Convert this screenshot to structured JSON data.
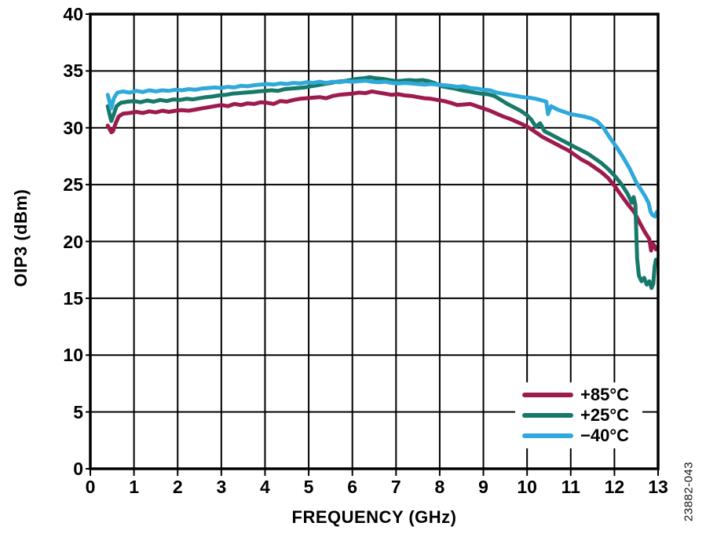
{
  "figure": {
    "background": "#ffffff",
    "watermark": "23882-043"
  },
  "axes": {
    "x": {
      "label": "FREQUENCY (GHz)",
      "min": 0,
      "max": 13,
      "ticks": [
        0,
        1,
        2,
        3,
        4,
        5,
        6,
        7,
        8,
        9,
        10,
        11,
        12,
        13
      ]
    },
    "y": {
      "label": "OIP3 (dBm)",
      "min": 0,
      "max": 40,
      "ticks": [
        0,
        5,
        10,
        15,
        20,
        25,
        30,
        35,
        40
      ]
    },
    "grid_color": "#000000",
    "frame_color": "#000000"
  },
  "legend": {
    "position": "bottom-right",
    "items": [
      {
        "label": "+85°C",
        "color": "#9e1b4e"
      },
      {
        "label": "+25°C",
        "color": "#17796a"
      },
      {
        "label": "−40°C",
        "color": "#2fa9dc"
      }
    ]
  },
  "chart_data": {
    "type": "line",
    "xlabel": "FREQUENCY (GHz)",
    "ylabel": "OIP3 (dBm)",
    "xlim": [
      0,
      13
    ],
    "ylim": [
      0,
      40
    ],
    "grid": true,
    "legend_position": "bottom-right",
    "series": [
      {
        "name": "+85°C",
        "color": "#9e1b4e",
        "points": [
          [
            0.4,
            30.2
          ],
          [
            0.44,
            29.9
          ],
          [
            0.48,
            29.6
          ],
          [
            0.52,
            29.7
          ],
          [
            0.58,
            30.4
          ],
          [
            0.65,
            31.0
          ],
          [
            0.75,
            31.25
          ],
          [
            0.9,
            31.3
          ],
          [
            1.05,
            31.4
          ],
          [
            1.2,
            31.3
          ],
          [
            1.35,
            31.45
          ],
          [
            1.5,
            31.35
          ],
          [
            1.65,
            31.5
          ],
          [
            1.8,
            31.4
          ],
          [
            1.95,
            31.5
          ],
          [
            2.1,
            31.55
          ],
          [
            2.25,
            31.5
          ],
          [
            2.4,
            31.6
          ],
          [
            2.55,
            31.7
          ],
          [
            2.7,
            31.8
          ],
          [
            2.85,
            31.9
          ],
          [
            3.0,
            32.0
          ],
          [
            3.15,
            31.9
          ],
          [
            3.3,
            32.1
          ],
          [
            3.45,
            32.0
          ],
          [
            3.6,
            32.15
          ],
          [
            3.75,
            32.1
          ],
          [
            3.9,
            32.25
          ],
          [
            4.05,
            32.2
          ],
          [
            4.2,
            32.1
          ],
          [
            4.35,
            32.35
          ],
          [
            4.5,
            32.3
          ],
          [
            4.65,
            32.45
          ],
          [
            4.8,
            32.55
          ],
          [
            4.95,
            32.6
          ],
          [
            5.1,
            32.65
          ],
          [
            5.25,
            32.7
          ],
          [
            5.4,
            32.6
          ],
          [
            5.55,
            32.8
          ],
          [
            5.7,
            32.9
          ],
          [
            5.85,
            32.95
          ],
          [
            6.0,
            33.0
          ],
          [
            6.15,
            33.1
          ],
          [
            6.3,
            33.05
          ],
          [
            6.45,
            33.2
          ],
          [
            6.6,
            33.1
          ],
          [
            6.75,
            33.0
          ],
          [
            6.9,
            32.9
          ],
          [
            7.05,
            32.95
          ],
          [
            7.2,
            32.85
          ],
          [
            7.35,
            32.8
          ],
          [
            7.5,
            32.7
          ],
          [
            7.65,
            32.6
          ],
          [
            7.8,
            32.55
          ],
          [
            7.95,
            32.45
          ],
          [
            8.1,
            32.35
          ],
          [
            8.25,
            32.2
          ],
          [
            8.4,
            32.0
          ],
          [
            8.55,
            32.05
          ],
          [
            8.7,
            32.1
          ],
          [
            8.85,
            31.9
          ],
          [
            9.0,
            31.7
          ],
          [
            9.15,
            31.5
          ],
          [
            9.3,
            31.25
          ],
          [
            9.45,
            31.0
          ],
          [
            9.6,
            30.8
          ],
          [
            9.75,
            30.55
          ],
          [
            9.9,
            30.3
          ],
          [
            10.05,
            30.0
          ],
          [
            10.2,
            29.6
          ],
          [
            10.35,
            29.2
          ],
          [
            10.5,
            28.9
          ],
          [
            10.65,
            28.6
          ],
          [
            10.8,
            28.3
          ],
          [
            10.95,
            28.0
          ],
          [
            11.1,
            27.6
          ],
          [
            11.25,
            27.2
          ],
          [
            11.4,
            26.9
          ],
          [
            11.55,
            26.5
          ],
          [
            11.7,
            26.1
          ],
          [
            11.85,
            25.6
          ],
          [
            12.0,
            24.9
          ],
          [
            12.15,
            24.1
          ],
          [
            12.3,
            23.3
          ],
          [
            12.45,
            22.6
          ],
          [
            12.6,
            21.5
          ],
          [
            12.7,
            20.8
          ],
          [
            12.8,
            20.2
          ],
          [
            12.84,
            19.2
          ],
          [
            12.88,
            19.8
          ],
          [
            12.92,
            19.6
          ],
          [
            12.95,
            19.3
          ]
        ]
      },
      {
        "name": "+25°C",
        "color": "#17796a",
        "points": [
          [
            0.4,
            31.9
          ],
          [
            0.44,
            31.2
          ],
          [
            0.48,
            30.6
          ],
          [
            0.53,
            31.1
          ],
          [
            0.6,
            31.9
          ],
          [
            0.7,
            32.2
          ],
          [
            0.85,
            32.3
          ],
          [
            1.0,
            32.35
          ],
          [
            1.15,
            32.25
          ],
          [
            1.3,
            32.4
          ],
          [
            1.45,
            32.3
          ],
          [
            1.6,
            32.45
          ],
          [
            1.75,
            32.35
          ],
          [
            1.9,
            32.5
          ],
          [
            2.05,
            32.45
          ],
          [
            2.2,
            32.55
          ],
          [
            2.35,
            32.5
          ],
          [
            2.5,
            32.6
          ],
          [
            2.65,
            32.7
          ],
          [
            2.8,
            32.75
          ],
          [
            2.95,
            32.85
          ],
          [
            3.1,
            32.9
          ],
          [
            3.25,
            33.0
          ],
          [
            3.4,
            33.05
          ],
          [
            3.55,
            33.1
          ],
          [
            3.7,
            33.15
          ],
          [
            3.85,
            33.2
          ],
          [
            4.0,
            33.25
          ],
          [
            4.15,
            33.3
          ],
          [
            4.3,
            33.25
          ],
          [
            4.45,
            33.4
          ],
          [
            4.6,
            33.45
          ],
          [
            4.75,
            33.5
          ],
          [
            4.9,
            33.55
          ],
          [
            5.05,
            33.65
          ],
          [
            5.2,
            33.75
          ],
          [
            5.35,
            33.85
          ],
          [
            5.5,
            33.95
          ],
          [
            5.65,
            34.05
          ],
          [
            5.8,
            34.1
          ],
          [
            5.95,
            34.2
          ],
          [
            6.1,
            34.3
          ],
          [
            6.25,
            34.35
          ],
          [
            6.4,
            34.45
          ],
          [
            6.55,
            34.35
          ],
          [
            6.7,
            34.3
          ],
          [
            6.85,
            34.2
          ],
          [
            7.0,
            34.1
          ],
          [
            7.15,
            34.15
          ],
          [
            7.3,
            34.2
          ],
          [
            7.45,
            34.15
          ],
          [
            7.6,
            34.2
          ],
          [
            7.75,
            34.1
          ],
          [
            7.9,
            33.9
          ],
          [
            8.05,
            33.65
          ],
          [
            8.2,
            33.55
          ],
          [
            8.35,
            33.45
          ],
          [
            8.5,
            33.3
          ],
          [
            8.65,
            33.2
          ],
          [
            8.8,
            33.1
          ],
          [
            8.95,
            33.0
          ],
          [
            9.1,
            32.95
          ],
          [
            9.25,
            32.8
          ],
          [
            9.4,
            32.45
          ],
          [
            9.55,
            32.1
          ],
          [
            9.7,
            31.8
          ],
          [
            9.85,
            31.5
          ],
          [
            10.0,
            31.1
          ],
          [
            10.1,
            30.7
          ],
          [
            10.2,
            30.1
          ],
          [
            10.3,
            30.4
          ],
          [
            10.4,
            29.7
          ],
          [
            10.5,
            29.5
          ],
          [
            10.65,
            29.2
          ],
          [
            10.8,
            28.9
          ],
          [
            10.95,
            28.6
          ],
          [
            11.1,
            28.3
          ],
          [
            11.25,
            28.0
          ],
          [
            11.4,
            27.7
          ],
          [
            11.55,
            27.3
          ],
          [
            11.7,
            26.9
          ],
          [
            11.85,
            26.4
          ],
          [
            12.0,
            25.8
          ],
          [
            12.15,
            25.1
          ],
          [
            12.3,
            24.2
          ],
          [
            12.4,
            23.4
          ],
          [
            12.44,
            23.9
          ],
          [
            12.48,
            23.2
          ],
          [
            12.52,
            18.5
          ],
          [
            12.56,
            17.0
          ],
          [
            12.62,
            16.5
          ],
          [
            12.68,
            16.8
          ],
          [
            12.74,
            16.2
          ],
          [
            12.8,
            16.5
          ],
          [
            12.85,
            15.9
          ],
          [
            12.89,
            16.3
          ],
          [
            12.92,
            17.8
          ],
          [
            12.95,
            18.4
          ]
        ]
      },
      {
        "name": "−40°C",
        "color": "#2fa9dc",
        "points": [
          [
            0.4,
            32.9
          ],
          [
            0.44,
            32.3
          ],
          [
            0.48,
            31.7
          ],
          [
            0.54,
            32.6
          ],
          [
            0.62,
            33.1
          ],
          [
            0.75,
            33.2
          ],
          [
            0.9,
            33.1
          ],
          [
            1.05,
            33.25
          ],
          [
            1.2,
            33.15
          ],
          [
            1.35,
            33.3
          ],
          [
            1.5,
            33.2
          ],
          [
            1.65,
            33.3
          ],
          [
            1.8,
            33.25
          ],
          [
            1.95,
            33.35
          ],
          [
            2.1,
            33.3
          ],
          [
            2.25,
            33.4
          ],
          [
            2.4,
            33.35
          ],
          [
            2.55,
            33.45
          ],
          [
            2.7,
            33.5
          ],
          [
            2.85,
            33.55
          ],
          [
            3.0,
            33.5
          ],
          [
            3.15,
            33.6
          ],
          [
            3.3,
            33.55
          ],
          [
            3.45,
            33.7
          ],
          [
            3.6,
            33.65
          ],
          [
            3.75,
            33.75
          ],
          [
            3.9,
            33.8
          ],
          [
            4.05,
            33.85
          ],
          [
            4.2,
            33.8
          ],
          [
            4.35,
            33.9
          ],
          [
            4.5,
            33.85
          ],
          [
            4.65,
            33.95
          ],
          [
            4.8,
            33.9
          ],
          [
            4.95,
            34.0
          ],
          [
            5.1,
            33.95
          ],
          [
            5.25,
            34.05
          ],
          [
            5.4,
            33.95
          ],
          [
            5.55,
            34.05
          ],
          [
            5.7,
            34.0
          ],
          [
            5.85,
            34.1
          ],
          [
            6.0,
            34.05
          ],
          [
            6.15,
            34.1
          ],
          [
            6.3,
            34.15
          ],
          [
            6.45,
            34.05
          ],
          [
            6.6,
            34.0
          ],
          [
            6.75,
            34.05
          ],
          [
            6.9,
            33.95
          ],
          [
            7.05,
            33.9
          ],
          [
            7.2,
            33.95
          ],
          [
            7.35,
            33.9
          ],
          [
            7.5,
            33.85
          ],
          [
            7.65,
            33.8
          ],
          [
            7.8,
            33.85
          ],
          [
            7.95,
            33.8
          ],
          [
            8.1,
            33.75
          ],
          [
            8.25,
            33.7
          ],
          [
            8.4,
            33.6
          ],
          [
            8.55,
            33.65
          ],
          [
            8.7,
            33.5
          ],
          [
            8.85,
            33.45
          ],
          [
            9.0,
            33.35
          ],
          [
            9.15,
            33.3
          ],
          [
            9.3,
            33.1
          ],
          [
            9.45,
            33.0
          ],
          [
            9.6,
            32.9
          ],
          [
            9.75,
            32.8
          ],
          [
            9.9,
            32.7
          ],
          [
            10.05,
            32.65
          ],
          [
            10.2,
            32.55
          ],
          [
            10.35,
            32.4
          ],
          [
            10.44,
            32.3
          ],
          [
            10.48,
            31.2
          ],
          [
            10.55,
            31.9
          ],
          [
            10.7,
            31.6
          ],
          [
            10.85,
            31.4
          ],
          [
            11.0,
            31.2
          ],
          [
            11.15,
            31.1
          ],
          [
            11.3,
            31.0
          ],
          [
            11.45,
            30.85
          ],
          [
            11.6,
            30.6
          ],
          [
            11.75,
            30.0
          ],
          [
            11.9,
            29.1
          ],
          [
            12.05,
            28.3
          ],
          [
            12.2,
            27.4
          ],
          [
            12.35,
            26.4
          ],
          [
            12.5,
            25.2
          ],
          [
            12.6,
            24.6
          ],
          [
            12.7,
            24.0
          ],
          [
            12.78,
            23.4
          ],
          [
            12.83,
            22.6
          ],
          [
            12.88,
            22.3
          ],
          [
            12.93,
            22.2
          ],
          [
            12.97,
            22.6
          ]
        ]
      }
    ]
  }
}
